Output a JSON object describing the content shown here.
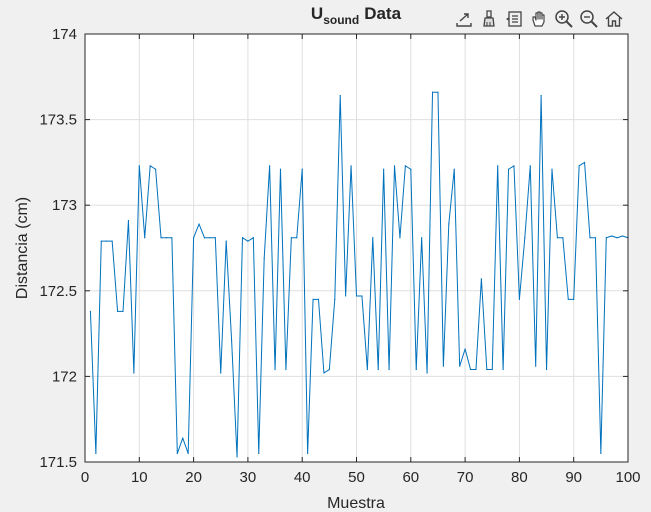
{
  "toolbar": {
    "buttons": [
      {
        "name": "export-icon"
      },
      {
        "name": "brush-icon"
      },
      {
        "name": "datatip-icon"
      },
      {
        "name": "pan-hand-icon"
      },
      {
        "name": "zoom-in-icon"
      },
      {
        "name": "zoom-out-icon"
      },
      {
        "name": "home-icon"
      }
    ]
  },
  "colors": {
    "figure_bg": "#f0f0f0",
    "axes_bg": "#ffffff",
    "grid": "#dfdfdf",
    "axis": "#262626",
    "series": "#0072bd"
  },
  "chart_data": {
    "type": "line",
    "title_main": "U",
    "title_sub": "sound",
    "title_rest": "Data",
    "xlabel": "Muestra",
    "ylabel": "Distancia (cm)",
    "xlim": [
      0,
      100
    ],
    "ylim": [
      171.5,
      174
    ],
    "xticks": [
      0,
      10,
      20,
      30,
      40,
      50,
      60,
      70,
      80,
      90,
      100
    ],
    "xtick_labels": [
      "0",
      "10",
      "20",
      "30",
      "40",
      "50",
      "60",
      "70",
      "80",
      "90",
      "100"
    ],
    "yticks": [
      171.5,
      172,
      172.5,
      173,
      173.5,
      174
    ],
    "ytick_labels": [
      "171.5",
      "172",
      "172.5",
      "173",
      "173.5",
      "174"
    ],
    "grid": true,
    "series": [
      {
        "x": [
          1,
          2,
          3,
          4,
          5,
          6,
          7,
          8,
          9,
          10,
          11,
          12,
          13,
          14,
          15,
          16,
          17,
          18,
          19,
          20,
          21,
          22,
          23,
          24,
          25,
          26,
          27,
          28,
          29,
          30,
          31,
          32,
          33,
          34,
          35,
          36,
          37,
          38,
          39,
          40,
          41,
          42,
          43,
          44,
          45,
          46,
          47,
          48,
          49,
          50,
          51,
          52,
          53,
          54,
          55,
          56,
          57,
          58,
          59,
          60,
          61,
          62,
          63,
          64,
          65,
          66,
          67,
          68,
          69,
          70,
          71,
          72,
          73,
          74,
          75,
          76,
          77,
          78,
          79,
          80,
          81,
          82,
          83,
          84,
          85,
          86,
          87,
          88,
          89,
          90,
          91,
          92,
          93,
          94,
          95,
          96,
          97,
          98,
          99,
          100
        ],
        "values": [
          172.38,
          171.55,
          172.79,
          172.79,
          172.79,
          172.38,
          172.38,
          172.91,
          172.02,
          173.23,
          172.81,
          173.23,
          173.21,
          172.81,
          172.81,
          172.81,
          171.55,
          171.64,
          171.55,
          172.81,
          172.89,
          172.81,
          172.81,
          172.81,
          172.02,
          172.79,
          172.21,
          171.53,
          172.81,
          172.79,
          172.81,
          171.55,
          172.69,
          173.23,
          172.04,
          173.21,
          172.04,
          172.81,
          172.81,
          173.21,
          171.55,
          172.45,
          172.45,
          172.02,
          172.04,
          172.45,
          173.64,
          172.47,
          173.23,
          172.47,
          172.47,
          172.04,
          172.81,
          172.04,
          173.21,
          172.04,
          173.23,
          172.81,
          173.23,
          173.21,
          172.04,
          172.81,
          172.02,
          173.66,
          173.66,
          172.06,
          172.89,
          173.21,
          172.06,
          172.16,
          172.04,
          172.04,
          172.57,
          172.04,
          172.04,
          173.23,
          172.04,
          173.21,
          173.23,
          172.45,
          172.81,
          173.23,
          172.06,
          173.64,
          172.04,
          173.21,
          172.81,
          172.81,
          172.45,
          172.45,
          173.23,
          173.25,
          172.81,
          172.81,
          171.55,
          172.81,
          172.82,
          172.81,
          172.82,
          172.81
        ]
      }
    ]
  }
}
